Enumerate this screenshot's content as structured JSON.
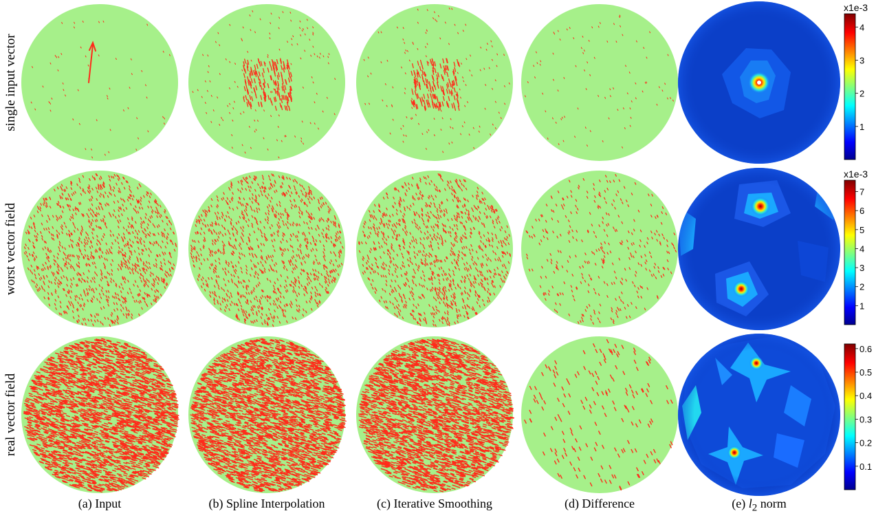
{
  "row_labels": [
    "single input vector",
    "worst vector field",
    "real vector field"
  ],
  "captions": {
    "a": "(a) Input",
    "b": "(b) Spline Interpolation",
    "c": "(c) Iterative Smoothing",
    "d": "(d) Difference",
    "e_prefix": "(e)",
    "e_symbol": "l",
    "e_subscript": "2",
    "e_suffix": "norm"
  },
  "colorbars": [
    {
      "exponent_label": "x1e-3",
      "ticks": [
        "4",
        "3",
        "2",
        "1"
      ],
      "tick_values": [
        4,
        3,
        2,
        1
      ],
      "range": [
        0,
        4.4
      ]
    },
    {
      "exponent_label": "x1e-3",
      "ticks": [
        "7",
        "6",
        "5",
        "4",
        "3",
        "2",
        "1"
      ],
      "tick_values": [
        7,
        6,
        5,
        4,
        3,
        2,
        1
      ],
      "range": [
        0,
        7.6
      ]
    },
    {
      "exponent_label": "",
      "ticks": [
        "0.6",
        "0.5",
        "0.4",
        "0.3",
        "0.2",
        "0.1"
      ],
      "tick_values": [
        0.6,
        0.5,
        0.4,
        0.3,
        0.2,
        0.1
      ],
      "range": [
        0,
        0.62
      ]
    }
  ],
  "colors": {
    "sphere_fill": "#a6f08a",
    "vector": "#ff2a1a",
    "norm_background": "#0b3fc8"
  }
}
